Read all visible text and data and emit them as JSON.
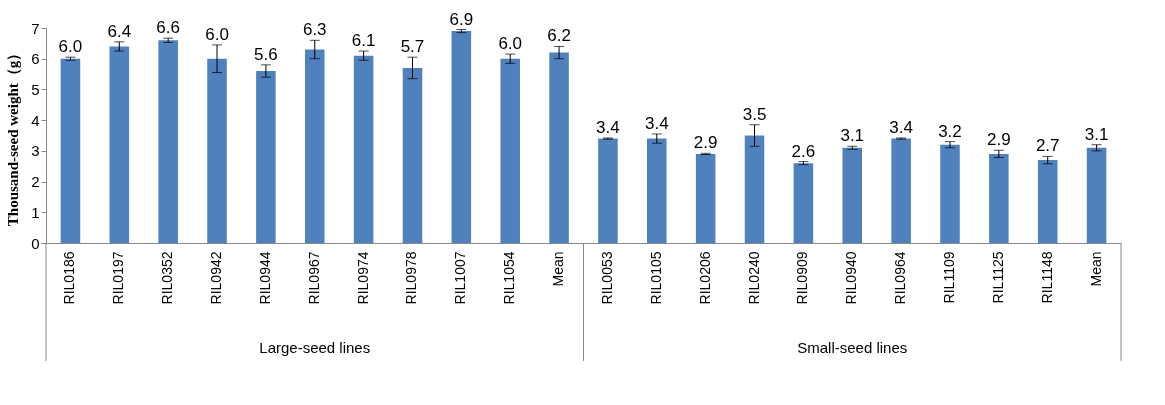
{
  "chart_data": {
    "type": "bar",
    "ylabel": "Thousand-seed weight（g）",
    "categories": [
      "RIL0186",
      "RIL0197",
      "RIL0352",
      "RIL0942",
      "RIL0944",
      "RIL0967",
      "RIL0974",
      "RIL0978",
      "RIL1007",
      "RIL1054",
      "Mean",
      "RIL0053",
      "RIL0105",
      "RIL0206",
      "RIL0240",
      "RIL0909",
      "RIL0940",
      "RIL0964",
      "RIL1109",
      "RIL1125",
      "RIL1148",
      "Mean"
    ],
    "values": [
      6.0,
      6.4,
      6.6,
      6.0,
      5.6,
      6.3,
      6.1,
      5.7,
      6.9,
      6.0,
      6.2,
      3.4,
      3.4,
      2.9,
      3.5,
      2.6,
      3.1,
      3.4,
      3.2,
      2.9,
      2.7,
      3.1
    ],
    "errors": [
      0.05,
      0.15,
      0.07,
      0.45,
      0.2,
      0.3,
      0.15,
      0.35,
      0.05,
      0.15,
      0.2,
      0.02,
      0.15,
      0.02,
      0.35,
      0.05,
      0.05,
      0.02,
      0.1,
      0.12,
      0.12,
      0.1
    ],
    "value_labels": [
      "6.0",
      "6.4",
      "6.6",
      "6.0",
      "5.6",
      "6.3",
      "6.1",
      "5.7",
      "6.9",
      "6.0",
      "6.2",
      "3.4",
      "3.4",
      "2.9",
      "3.5",
      "2.6",
      "3.1",
      "3.4",
      "3.2",
      "2.9",
      "2.7",
      "3.1"
    ],
    "color": "#4f81bd",
    "ylim": [
      0,
      7
    ],
    "yticks": [
      0,
      1,
      2,
      3,
      4,
      5,
      6,
      7
    ],
    "grid": false,
    "annotations": [
      "Large-seed lines",
      "Small-seed lines"
    ]
  }
}
